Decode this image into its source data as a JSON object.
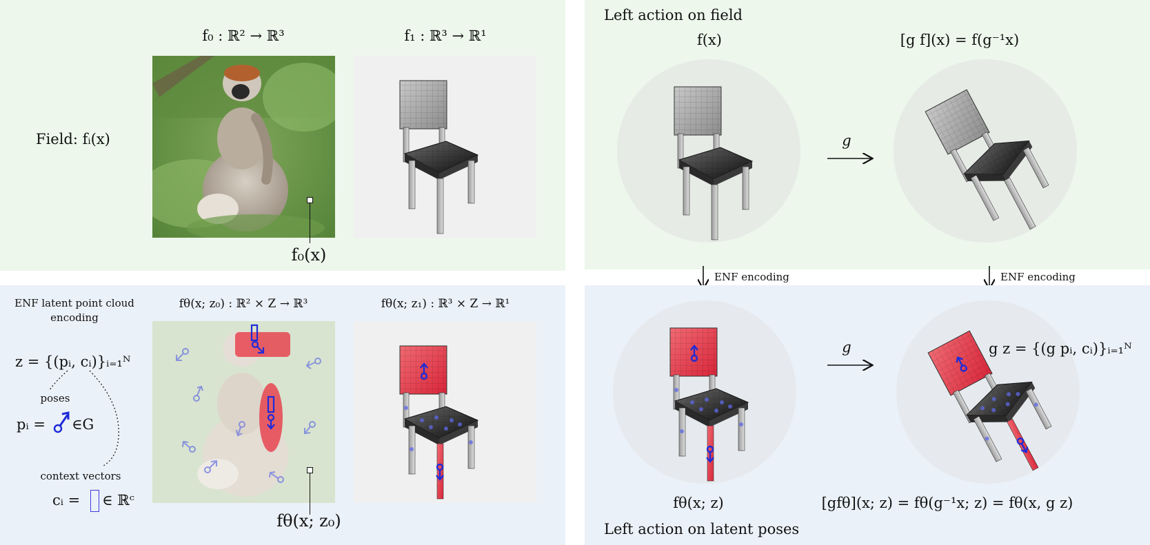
{
  "top_left": {
    "field_label": "Field: fᵢ(x)",
    "image_title": "f₀ : ℝ² → ℝ³",
    "shape_title": "f₁ : ℝ³ → ℝ¹",
    "pixel_label": "f₀(x)"
  },
  "bottom_left": {
    "heading_line1": "ENF latent point cloud",
    "heading_line2": "encoding",
    "latent_def": "z = {(pᵢ, cᵢ)}ᵢ₌₁ᴺ",
    "poses_label": "poses",
    "pose_def_left": "pᵢ =",
    "pose_def_right": "∈G",
    "context_label": "context vectors",
    "context_def_left": "cᵢ =",
    "context_def_right": "∈ ℝᶜ",
    "image_title": "fθ(x; z₀) : ℝ² × Z → ℝ³",
    "shape_title": "fθ(x; z₁) : ℝ³ × Z → ℝ¹",
    "pixel_label": "fθ(x; z₀)"
  },
  "top_right": {
    "heading": "Left action on field",
    "left_title": "f(x)",
    "right_title": "[g f](x) = f(g⁻¹x)",
    "arrow_label": "g",
    "encode_left": "ENF encoding",
    "encode_right": "ENF encoding"
  },
  "bottom_right": {
    "heading": "Left action on latent poses",
    "left_title": "fθ(x; z)",
    "right_title": "[gfθ](x; z) = fθ(g⁻¹x; z) = fθ(x, g z)",
    "arrow_label": "g",
    "gz_def": "g z = {(g pᵢ, cᵢ)}ᵢ₌₁ᴺ"
  },
  "colors": {
    "green_panel": "#edf7ec",
    "blue_panel": "#ebf1f8",
    "pose_blue": "#1f2bd8",
    "latent_red": "#e8303f"
  }
}
